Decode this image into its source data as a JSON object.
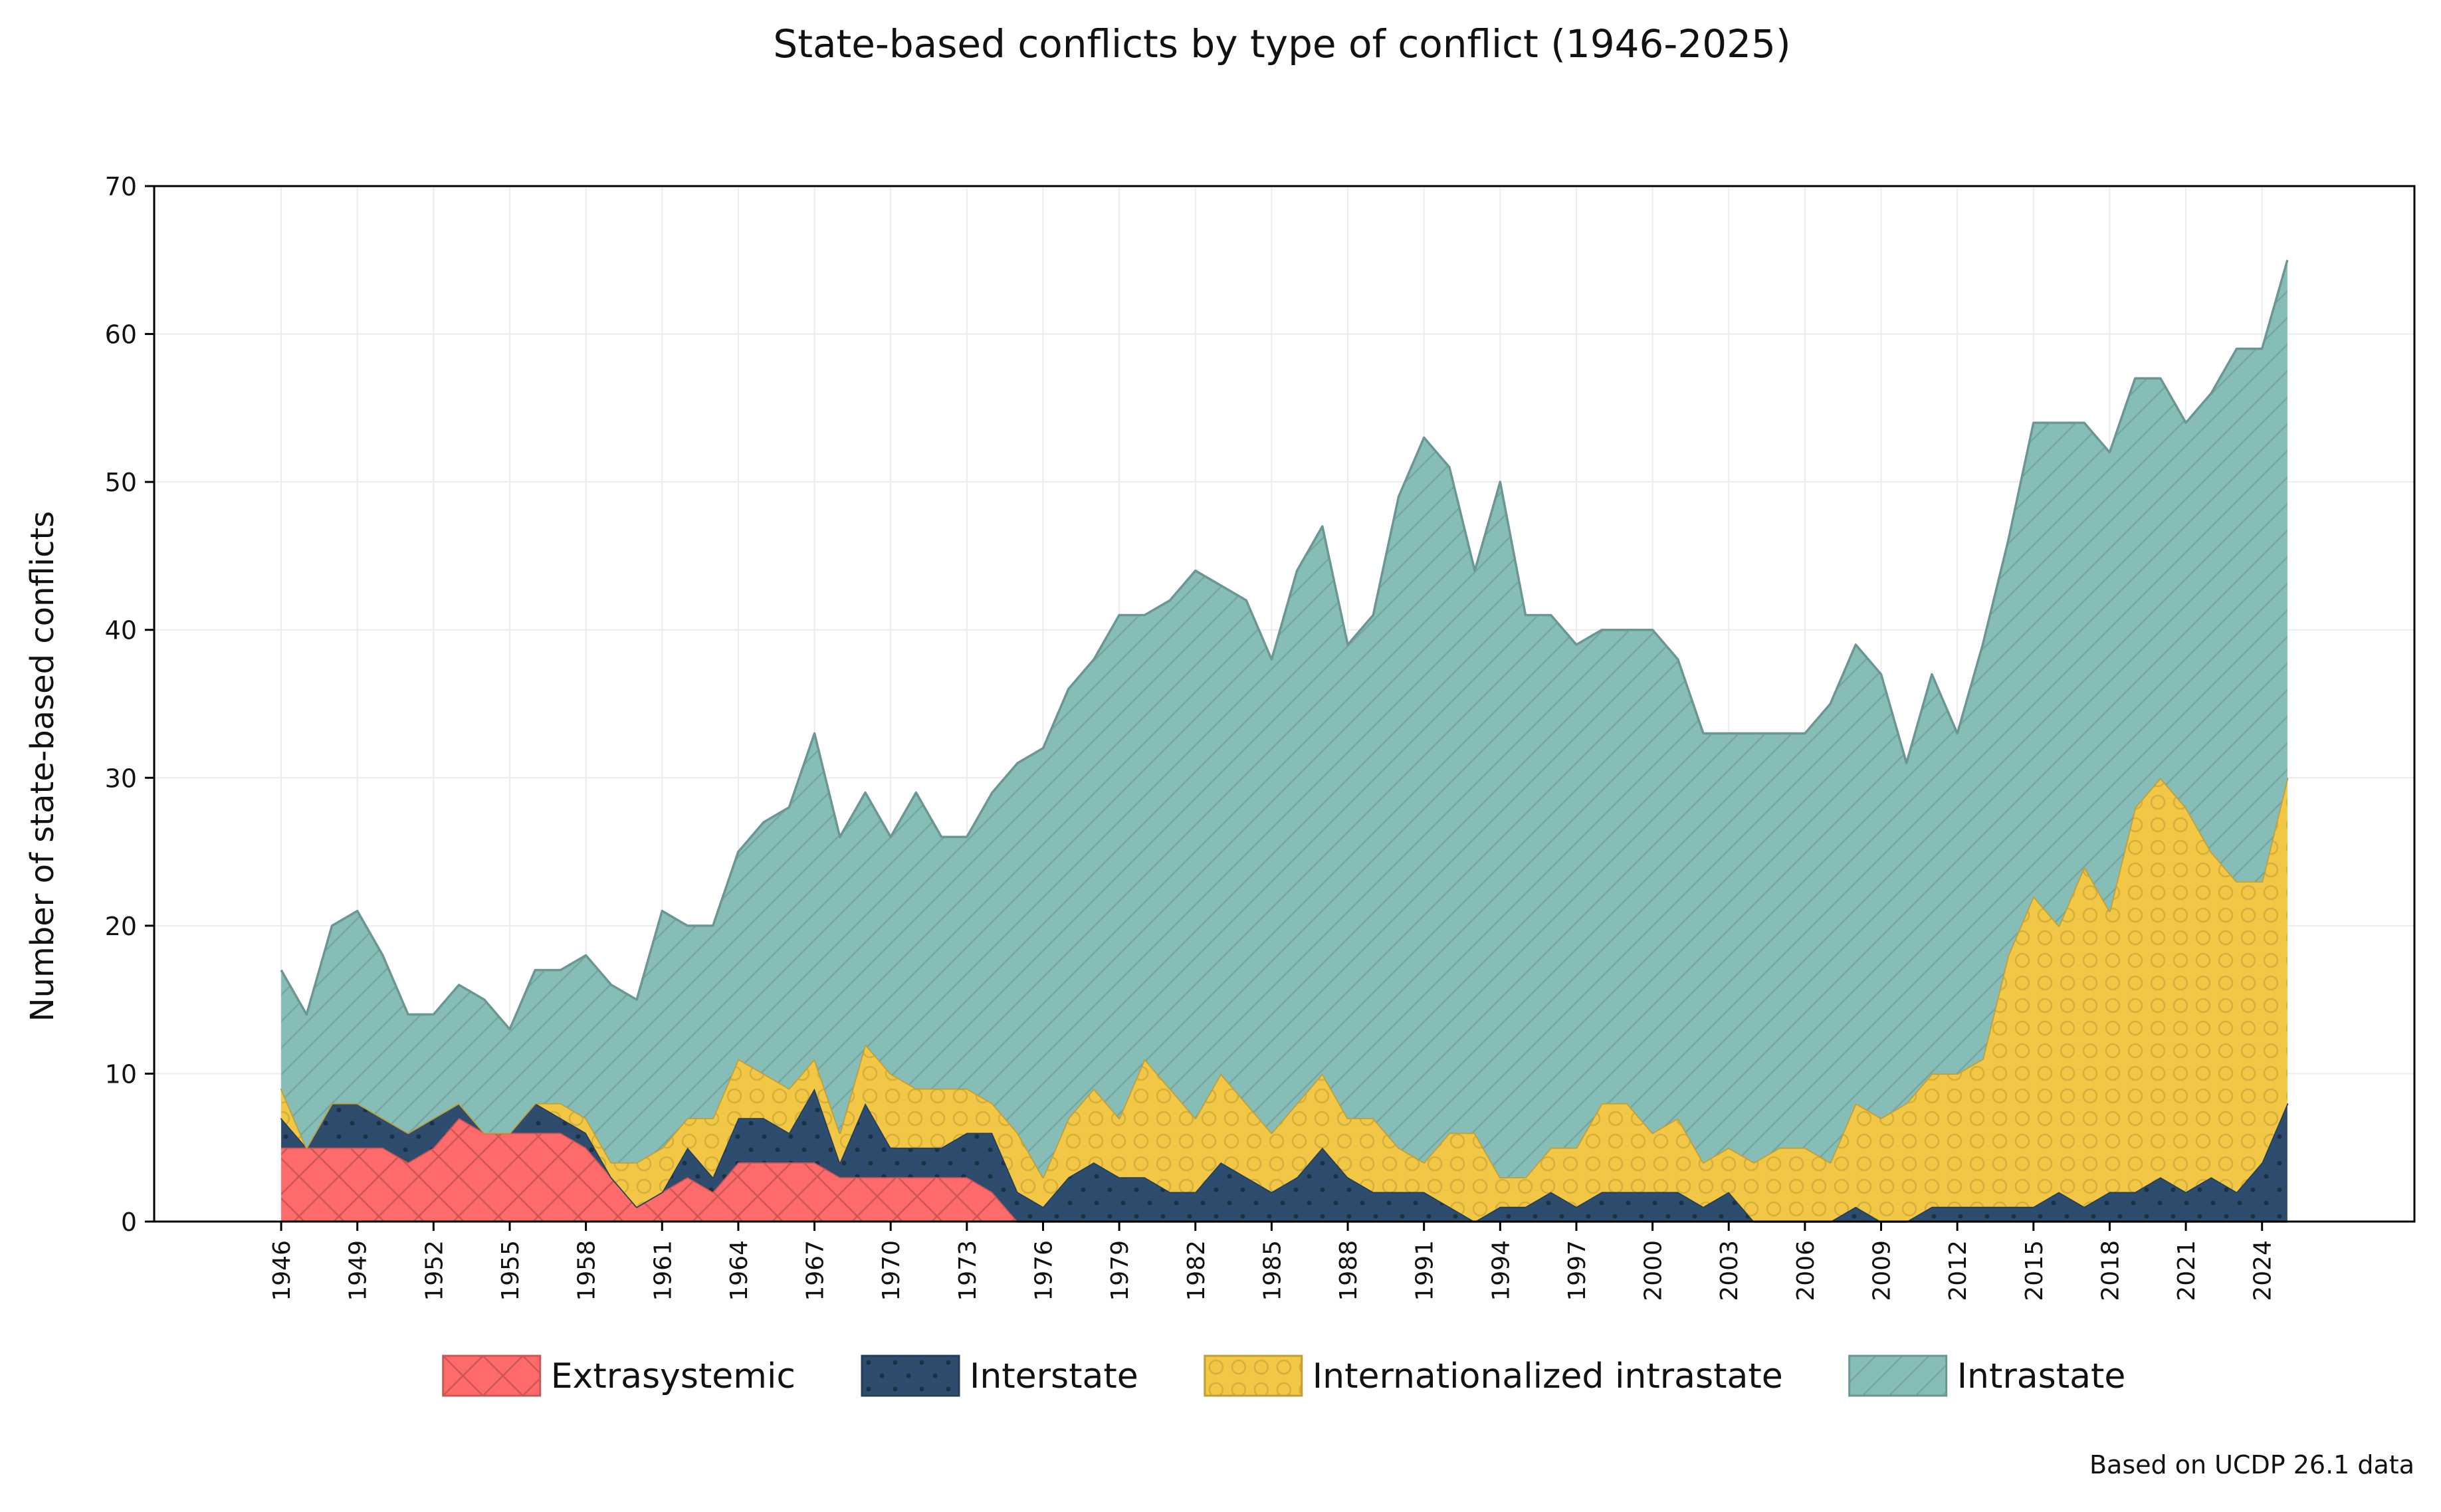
{
  "chart_data": {
    "type": "area",
    "stacked": true,
    "title": "State-based conflicts by type of conflict (1946-2025)",
    "ylabel": "Number of state-based conflicts",
    "xlabel": "",
    "ylim": [
      0,
      70
    ],
    "yticks": [
      0,
      10,
      20,
      30,
      40,
      50,
      60,
      70
    ],
    "xlim": [
      1941,
      2030
    ],
    "xticks": [
      1946,
      1949,
      1952,
      1955,
      1958,
      1961,
      1964,
      1967,
      1970,
      1973,
      1976,
      1979,
      1982,
      1985,
      1988,
      1991,
      1994,
      1997,
      2000,
      2003,
      2006,
      2009,
      2012,
      2015,
      2018,
      2021,
      2024
    ],
    "grid": true,
    "legend_position": "bottom",
    "source_note": "Based on UCDP 26.1 data",
    "x": [
      1946,
      1947,
      1948,
      1949,
      1950,
      1951,
      1952,
      1953,
      1954,
      1955,
      1956,
      1957,
      1958,
      1959,
      1960,
      1961,
      1962,
      1963,
      1964,
      1965,
      1966,
      1967,
      1968,
      1969,
      1970,
      1971,
      1972,
      1973,
      1974,
      1975,
      1976,
      1977,
      1978,
      1979,
      1980,
      1981,
      1982,
      1983,
      1984,
      1985,
      1986,
      1987,
      1988,
      1989,
      1990,
      1991,
      1992,
      1993,
      1994,
      1995,
      1996,
      1997,
      1998,
      1999,
      2000,
      2001,
      2002,
      2003,
      2004,
      2005,
      2006,
      2007,
      2008,
      2009,
      2010,
      2011,
      2012,
      2013,
      2014,
      2015,
      2016,
      2017,
      2018,
      2019,
      2020,
      2021,
      2022,
      2023,
      2024,
      2025
    ],
    "series": [
      {
        "name": "Extrasystemic",
        "color": "#ff6b6b",
        "pattern": "crosshatch",
        "values": [
          5,
          5,
          5,
          5,
          5,
          4,
          5,
          7,
          6,
          6,
          6,
          6,
          5,
          3,
          1,
          2,
          3,
          2,
          4,
          4,
          4,
          4,
          3,
          3,
          3,
          3,
          3,
          3,
          2,
          0,
          0,
          0,
          0,
          0,
          0,
          0,
          0,
          0,
          0,
          0,
          0,
          0,
          0,
          0,
          0,
          0,
          0,
          0,
          0,
          0,
          0,
          0,
          0,
          0,
          0,
          0,
          0,
          0,
          0,
          0,
          0,
          0,
          0,
          0,
          0,
          0,
          0,
          0,
          0,
          0,
          0,
          0,
          0,
          0,
          0,
          0,
          0,
          0,
          0,
          0
        ]
      },
      {
        "name": "Interstate",
        "color": "#2e4d6e",
        "pattern": "dots",
        "values": [
          2,
          0,
          3,
          3,
          2,
          2,
          2,
          1,
          0,
          0,
          2,
          1,
          1,
          0,
          0,
          0,
          2,
          1,
          3,
          3,
          2,
          5,
          1,
          5,
          2,
          2,
          2,
          3,
          4,
          2,
          1,
          3,
          4,
          3,
          3,
          2,
          2,
          4,
          3,
          2,
          3,
          5,
          3,
          2,
          2,
          2,
          1,
          0,
          1,
          1,
          2,
          1,
          2,
          2,
          2,
          2,
          1,
          2,
          0,
          0,
          0,
          0,
          1,
          0,
          0,
          1,
          1,
          1,
          1,
          1,
          2,
          1,
          2,
          2,
          3,
          2,
          3,
          2,
          4,
          8
        ]
      },
      {
        "name": "Internationalized intrastate",
        "color": "#f1c745",
        "pattern": "circles",
        "values": [
          2,
          0,
          0,
          0,
          0,
          0,
          0,
          0,
          0,
          0,
          0,
          1,
          1,
          1,
          3,
          3,
          2,
          4,
          4,
          3,
          3,
          2,
          2,
          4,
          5,
          4,
          4,
          3,
          2,
          4,
          2,
          4,
          5,
          4,
          8,
          7,
          5,
          6,
          5,
          4,
          5,
          5,
          4,
          5,
          3,
          2,
          5,
          6,
          2,
          2,
          3,
          4,
          6,
          6,
          4,
          5,
          3,
          3,
          4,
          5,
          5,
          4,
          7,
          7,
          8,
          9,
          9,
          10,
          17,
          21,
          18,
          23,
          19,
          26,
          27,
          26,
          22,
          21,
          19,
          22
        ]
      },
      {
        "name": "Intrastate",
        "color": "#86bdb6",
        "pattern": "diagonal",
        "values": [
          8,
          9,
          12,
          13,
          11,
          8,
          7,
          8,
          9,
          7,
          9,
          9,
          11,
          12,
          11,
          16,
          13,
          13,
          14,
          17,
          19,
          22,
          20,
          17,
          16,
          20,
          17,
          17,
          21,
          25,
          29,
          29,
          29,
          34,
          30,
          33,
          37,
          33,
          34,
          32,
          36,
          37,
          32,
          34,
          44,
          49,
          45,
          38,
          47,
          38,
          36,
          34,
          32,
          32,
          34,
          31,
          29,
          28,
          29,
          28,
          28,
          31,
          31,
          30,
          23,
          27,
          23,
          28,
          28,
          32,
          34,
          30,
          31,
          29,
          27,
          26,
          31,
          36,
          36,
          35
        ]
      }
    ]
  }
}
